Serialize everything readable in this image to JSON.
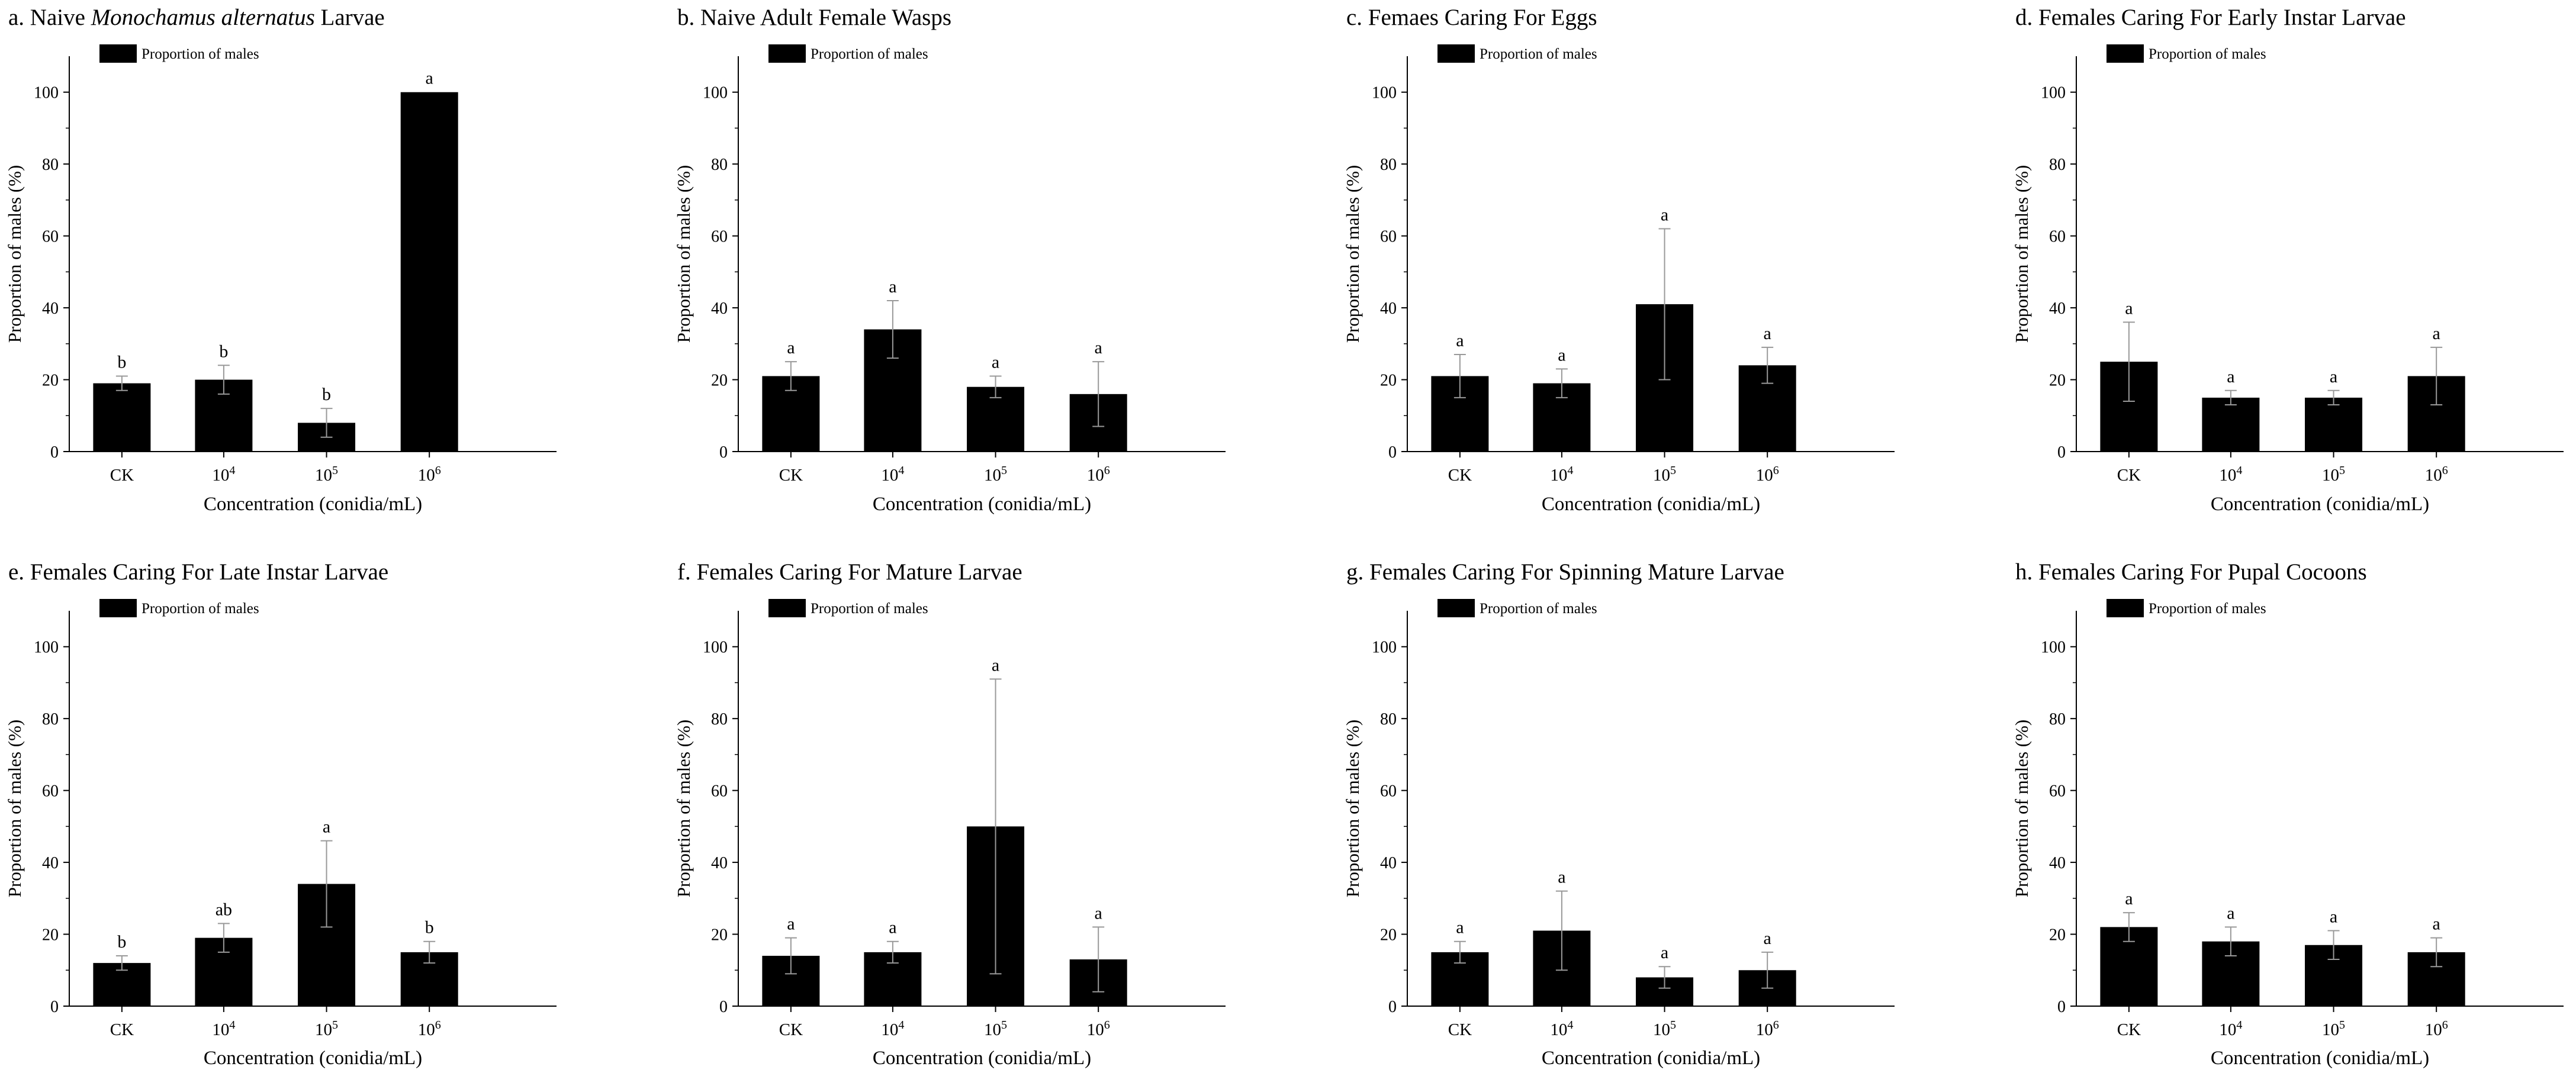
{
  "figure": {
    "xlabel": "Concentration (conidia/mL)",
    "ylabel": "Proportion of males (%)",
    "legend_label": "Proportion of males",
    "categories": [
      "CK",
      "10^4",
      "10^5",
      "10^6"
    ],
    "y_ticks": [
      0,
      20,
      40,
      60,
      80,
      100
    ]
  },
  "chart_data": [
    {
      "type": "bar",
      "title_prefix": "a. Naive ",
      "title_italic": "Monochamus alternatus",
      "title_suffix": " Larvae",
      "xlabel": "Concentration (conidia/mL)",
      "ylabel": "Proportion of males (%)",
      "ylim": [
        0,
        110
      ],
      "categories": [
        "CK",
        "10^4",
        "10^5",
        "10^6"
      ],
      "series": [
        {
          "name": "Proportion of males",
          "values": [
            19,
            20,
            8,
            100
          ],
          "errors": [
            2,
            4,
            4,
            0
          ]
        }
      ],
      "letters": [
        "b",
        "b",
        "b",
        "a"
      ],
      "legend": "top-left",
      "color": "#000000"
    },
    {
      "type": "bar",
      "title": "b. Naive Adult Female Wasps",
      "xlabel": "Concentration (conidia/mL)",
      "ylabel": "Proportion of males (%)",
      "ylim": [
        0,
        110
      ],
      "categories": [
        "CK",
        "10^4",
        "10^5",
        "10^6"
      ],
      "series": [
        {
          "name": "Proportion of males",
          "values": [
            21,
            34,
            18,
            16
          ],
          "errors": [
            4,
            8,
            3,
            9
          ]
        }
      ],
      "letters": [
        "a",
        "a",
        "a",
        "a"
      ],
      "legend": "top-left",
      "color": "#000000"
    },
    {
      "type": "bar",
      "title": "c. Femaes Caring For Eggs",
      "xlabel": "Concentration (conidia/mL)",
      "ylabel": "Proportion of males (%)",
      "ylim": [
        0,
        110
      ],
      "categories": [
        "CK",
        "10^4",
        "10^5",
        "10^6"
      ],
      "series": [
        {
          "name": "Proportion of males",
          "values": [
            21,
            19,
            41,
            24
          ],
          "errors": [
            6,
            4,
            21,
            5
          ]
        }
      ],
      "letters": [
        "a",
        "a",
        "a",
        "a"
      ],
      "legend": "top-left",
      "color": "#000000"
    },
    {
      "type": "bar",
      "title": "d. Females Caring For Early Instar Larvae",
      "xlabel": "Concentration (conidia/mL)",
      "ylabel": "Proportion of males (%)",
      "ylim": [
        0,
        110
      ],
      "categories": [
        "CK",
        "10^4",
        "10^5",
        "10^6"
      ],
      "series": [
        {
          "name": "Proportion of males",
          "values": [
            25,
            15,
            15,
            21
          ],
          "errors": [
            11,
            2,
            2,
            8
          ]
        }
      ],
      "letters": [
        "a",
        "a",
        "a",
        "a"
      ],
      "legend": "top-left",
      "color": "#000000"
    },
    {
      "type": "bar",
      "title": "e. Females Caring For Late Instar Larvae",
      "xlabel": "Concentration (conidia/mL)",
      "ylabel": "Proportion of males (%)",
      "ylim": [
        0,
        110
      ],
      "categories": [
        "CK",
        "10^4",
        "10^5",
        "10^6"
      ],
      "series": [
        {
          "name": "Proportion of males",
          "values": [
            12,
            19,
            34,
            15
          ],
          "errors": [
            2,
            4,
            12,
            3
          ]
        }
      ],
      "letters": [
        "b",
        "ab",
        "a",
        "b"
      ],
      "legend": "top-left",
      "color": "#000000"
    },
    {
      "type": "bar",
      "title": "f. Females Caring For Mature Larvae",
      "xlabel": "Concentration (conidia/mL)",
      "ylabel": "Proportion of males (%)",
      "ylim": [
        0,
        110
      ],
      "categories": [
        "CK",
        "10^4",
        "10^5",
        "10^6"
      ],
      "series": [
        {
          "name": "Proportion of males",
          "values": [
            14,
            15,
            50,
            13
          ],
          "errors": [
            5,
            3,
            41,
            9
          ]
        }
      ],
      "letters": [
        "a",
        "a",
        "a",
        "a"
      ],
      "legend": "top-left",
      "color": "#000000"
    },
    {
      "type": "bar",
      "title": "g. Females Caring For Spinning Mature Larvae",
      "xlabel": "Concentration (conidia/mL)",
      "ylabel": "Proportion of males (%)",
      "ylim": [
        0,
        110
      ],
      "categories": [
        "CK",
        "10^4",
        "10^5",
        "10^6"
      ],
      "series": [
        {
          "name": "Proportion of males",
          "values": [
            15,
            21,
            8,
            10
          ],
          "errors": [
            3,
            11,
            3,
            5
          ]
        }
      ],
      "letters": [
        "a",
        "a",
        "a",
        "a"
      ],
      "legend": "top-left",
      "color": "#000000"
    },
    {
      "type": "bar",
      "title": "h. Females Caring For Pupal Cocoons",
      "xlabel": "Concentration (conidia/mL)",
      "ylabel": "Proportion of males (%)",
      "ylim": [
        0,
        110
      ],
      "categories": [
        "CK",
        "10^4",
        "10^5",
        "10^6"
      ],
      "series": [
        {
          "name": "Proportion of males",
          "values": [
            22,
            18,
            17,
            15
          ],
          "errors": [
            4,
            4,
            4,
            4
          ]
        }
      ],
      "letters": [
        "a",
        "a",
        "a",
        "a"
      ],
      "legend": "top-left",
      "color": "#000000"
    }
  ]
}
